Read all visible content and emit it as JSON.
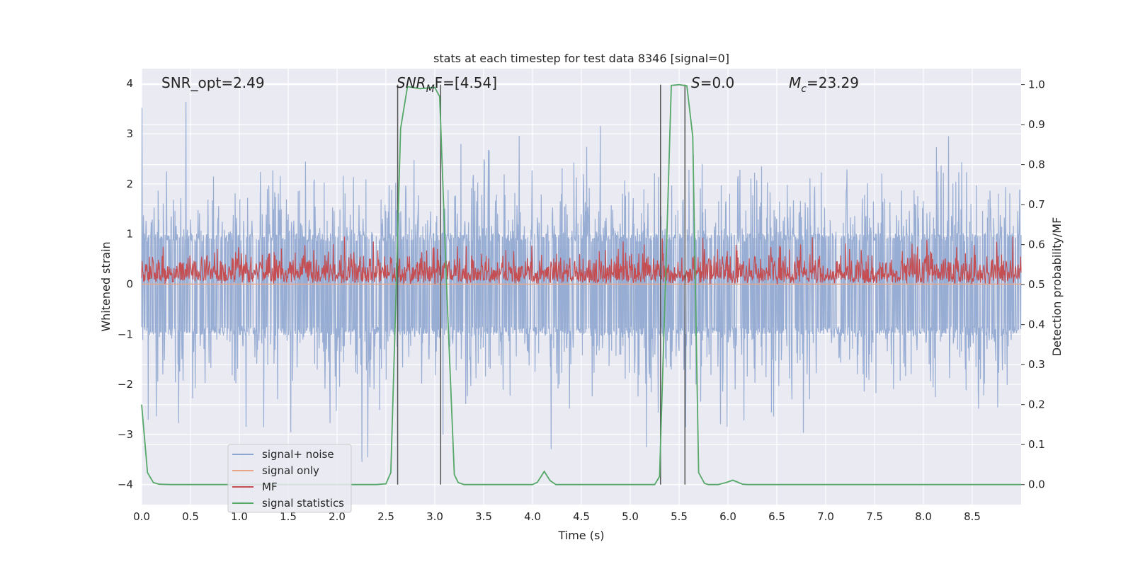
{
  "chart_data": {
    "type": "line",
    "title": "stats at each timestep for test data 8346 [signal=0]",
    "xlabel": "Time (s)",
    "ylabel_left": "Whitened strain",
    "ylabel_right": "Detection probability/MF",
    "xlim": [
      0.0,
      9.0
    ],
    "ylim_left": [
      -4.4,
      4.3
    ],
    "ylim_right": [
      -0.05,
      1.04
    ],
    "x_ticks": [
      "0.0",
      "0.5",
      "1.0",
      "1.5",
      "2.0",
      "2.5",
      "3.0",
      "3.5",
      "4.0",
      "4.5",
      "5.0",
      "5.5",
      "6.0",
      "6.5",
      "7.0",
      "7.5",
      "8.0",
      "8.5"
    ],
    "y_ticks_left": [
      "−4",
      "−3",
      "−2",
      "−1",
      "0",
      "1",
      "2",
      "3",
      "4"
    ],
    "y_ticks_right": [
      "0.0",
      "0.1",
      "0.2",
      "0.3",
      "0.4",
      "0.5",
      "0.6",
      "0.7",
      "0.8",
      "0.9",
      "1.0"
    ],
    "grid": true,
    "legend_position": "lower-left",
    "annotations": {
      "snr_opt": "SNR_opt=2.49",
      "snr_mf_italic": "SNR",
      "snr_mf_sub": "M",
      "snr_mf_rest": "F=[4.54]",
      "s_italic": "S",
      "s_rest": "=0.0",
      "mc_italic": "M",
      "mc_sub": "c",
      "mc_rest": "=23.29"
    },
    "vertical_markers": [
      2.62,
      3.06,
      5.31,
      5.56
    ],
    "series": [
      {
        "name": "signal+ noise",
        "color": "#8fa6cf",
        "kind": "noise",
        "amplitude_range": [
          -4.0,
          4.0
        ]
      },
      {
        "name": "signal only",
        "color": "#e8a486",
        "kind": "flat",
        "value": 0.0
      },
      {
        "name": "MF",
        "color": "#c44e52",
        "kind": "mf",
        "baseline": 0.5,
        "range": [
          0.5,
          0.62
        ]
      },
      {
        "name": "signal statistics",
        "color": "#55a868",
        "kind": "probability",
        "x": [
          0.0,
          0.06,
          0.12,
          0.18,
          0.3,
          0.5,
          1.0,
          1.5,
          2.0,
          2.4,
          2.5,
          2.55,
          2.6,
          2.65,
          2.72,
          2.85,
          3.0,
          3.05,
          3.12,
          3.2,
          3.24,
          3.3,
          3.5,
          4.0,
          4.05,
          4.12,
          4.18,
          4.24,
          4.3,
          4.6,
          5.0,
          5.25,
          5.3,
          5.36,
          5.42,
          5.5,
          5.58,
          5.64,
          5.7,
          5.76,
          5.8,
          5.9,
          5.98,
          6.05,
          6.15,
          6.2,
          6.5,
          7.0,
          8.0,
          9.0
        ],
        "y": [
          0.2,
          0.03,
          0.005,
          0.001,
          0.0,
          0.0,
          0.0,
          0.0,
          0.0,
          0.0,
          0.002,
          0.03,
          0.45,
          0.89,
          0.995,
          0.99,
          0.993,
          0.97,
          0.5,
          0.025,
          0.005,
          0.0,
          0.0,
          0.0,
          0.006,
          0.033,
          0.01,
          0.0,
          0.0,
          0.0,
          0.0,
          0.0,
          0.02,
          0.5,
          0.998,
          1.0,
          0.997,
          0.87,
          0.03,
          0.003,
          0.0,
          0.0,
          0.005,
          0.011,
          0.001,
          0.0,
          0.0,
          0.0,
          0.0,
          0.0
        ]
      }
    ]
  },
  "legend": {
    "items": [
      {
        "label": "signal+ noise",
        "color": "#8fa6cf"
      },
      {
        "label": "signal only",
        "color": "#e8a486"
      },
      {
        "label": "MF",
        "color": "#c44e52"
      },
      {
        "label": "signal statistics",
        "color": "#55a868"
      }
    ]
  },
  "colors": {
    "plot_bg": "#eaeaf2",
    "grid": "#ffffff",
    "marker": "#555555"
  }
}
